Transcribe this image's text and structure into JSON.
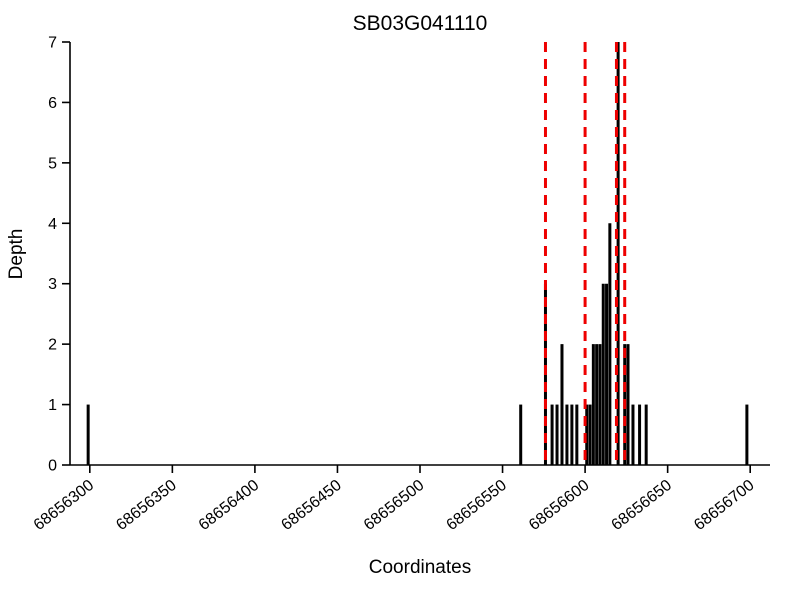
{
  "chart_data": {
    "type": "bar",
    "title": "SB03G041110",
    "xlabel": "Coordinates",
    "ylabel": "Depth",
    "xlim": [
      68656288,
      68656712
    ],
    "ylim": [
      0,
      7
    ],
    "x_ticks": [
      68656300,
      68656350,
      68656400,
      68656450,
      68656500,
      68656550,
      68656600,
      68656650,
      68656700
    ],
    "y_ticks": [
      0,
      1,
      2,
      3,
      4,
      5,
      6,
      7
    ],
    "grid": false,
    "legend": null,
    "bar_color": "#000000",
    "bars": [
      {
        "x": 68656299,
        "depth": 1
      },
      {
        "x": 68656561,
        "depth": 1
      },
      {
        "x": 68656576,
        "depth": 3
      },
      {
        "x": 68656580,
        "depth": 1
      },
      {
        "x": 68656583,
        "depth": 1
      },
      {
        "x": 68656586,
        "depth": 2
      },
      {
        "x": 68656589,
        "depth": 1
      },
      {
        "x": 68656592,
        "depth": 1
      },
      {
        "x": 68656595,
        "depth": 1
      },
      {
        "x": 68656601,
        "depth": 1
      },
      {
        "x": 68656603,
        "depth": 1
      },
      {
        "x": 68656605,
        "depth": 2
      },
      {
        "x": 68656607,
        "depth": 2
      },
      {
        "x": 68656609,
        "depth": 2
      },
      {
        "x": 68656611,
        "depth": 3
      },
      {
        "x": 68656613,
        "depth": 3
      },
      {
        "x": 68656615,
        "depth": 4
      },
      {
        "x": 68656620,
        "depth": 7
      },
      {
        "x": 68656624,
        "depth": 2
      },
      {
        "x": 68656626,
        "depth": 2
      },
      {
        "x": 68656629,
        "depth": 1
      },
      {
        "x": 68656633,
        "depth": 1
      },
      {
        "x": 68656637,
        "depth": 1
      },
      {
        "x": 68656698,
        "depth": 1
      }
    ],
    "marker_lines": {
      "color": "#ee0000",
      "style": "dashed",
      "positions": [
        68656576,
        68656600,
        68656619,
        68656624
      ]
    }
  }
}
